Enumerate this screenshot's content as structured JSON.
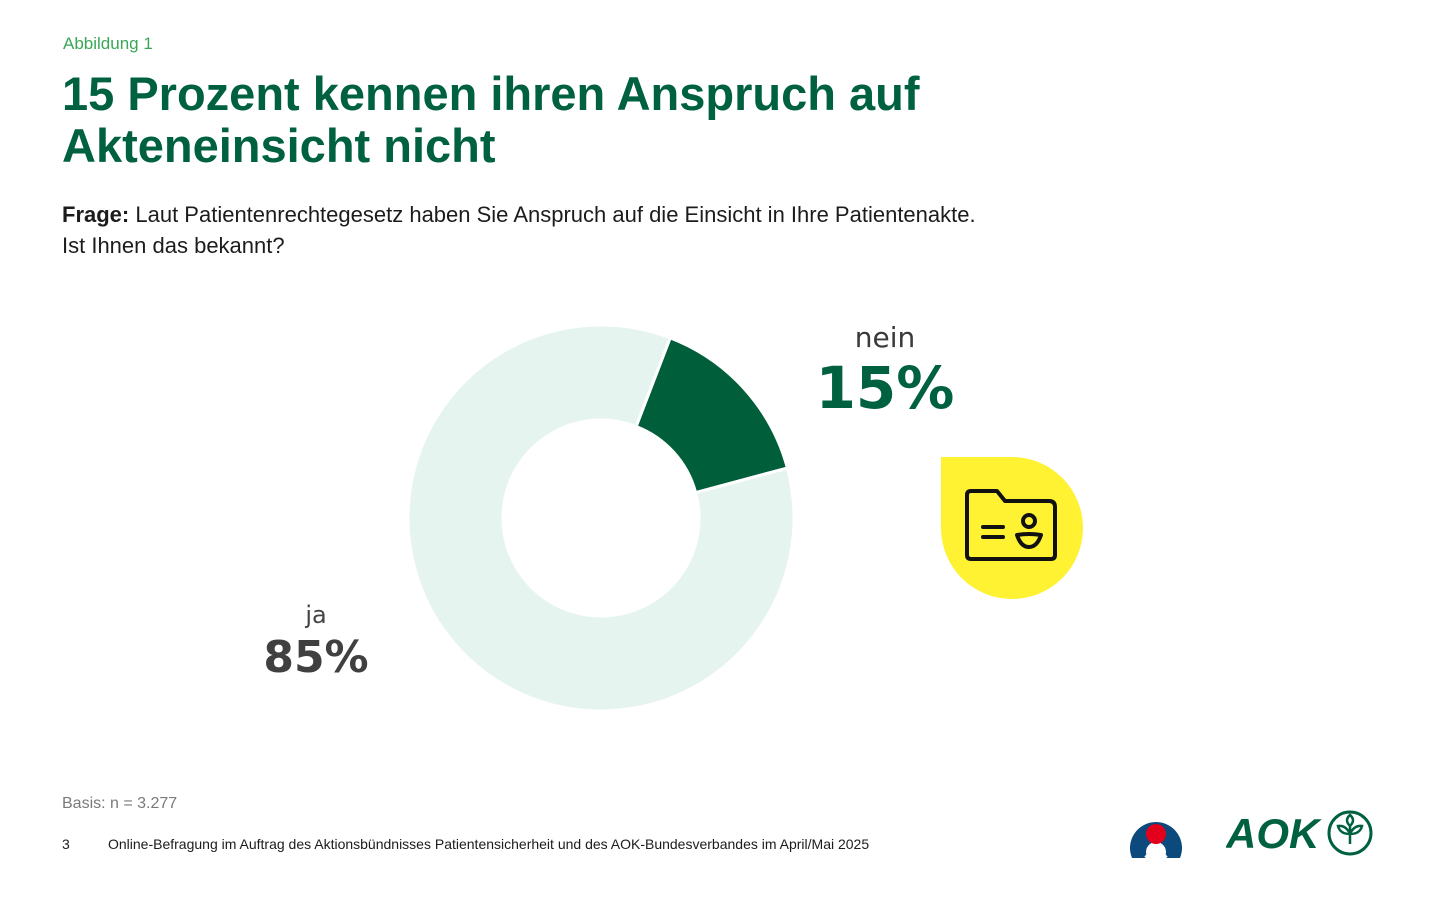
{
  "figure_label": "Abbildung 1",
  "title_line1": "15 Prozent kennen ihren Anspruch auf",
  "title_line2": "Akteneinsicht nicht",
  "question": {
    "prefix": "Frage:",
    "line1": " Laut Patientenrechtegesetz haben Sie Anspruch auf die Einsicht in Ihre Patientenakte.",
    "line2": "Ist Ihnen das bekannt?"
  },
  "chart_data": {
    "type": "pie",
    "variant": "donut",
    "slices": [
      {
        "label": "nein",
        "value": 15,
        "display": "15%",
        "color": "#005e3b"
      },
      {
        "label": "ja",
        "value": 85,
        "display": "85%",
        "color": "#e6f4ef"
      }
    ]
  },
  "icon": "patient-file-icon",
  "badge_color": "#fef232",
  "basis": "Basis: n = 3.277",
  "footer": {
    "page_number": "3",
    "source": "Online-Befragung im Auftrag des Aktionsbündnisses Patientensicherheit und des AOK-Bundesverbandes im April/Mai 2025"
  },
  "logos": {
    "aok_text": "AOK"
  }
}
